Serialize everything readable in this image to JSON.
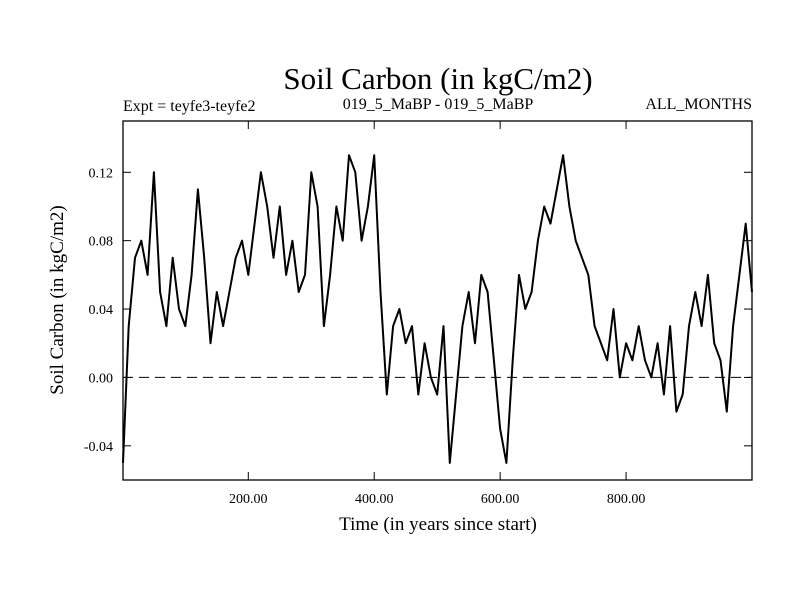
{
  "chart_data": {
    "type": "line",
    "title": "Soil Carbon (in kgC/m2)",
    "subtitle_left": "Expt = teyfe3-teyfe2",
    "subtitle_center": "019_5_MaBP - 019_5_MaBP",
    "subtitle_right": "ALL_MONTHS",
    "xlabel": "Time (in years since start)",
    "ylabel": "Soil Carbon (in kgC/m2)",
    "xlim": [
      1,
      1000
    ],
    "ylim": [
      -0.06,
      0.15
    ],
    "xticks": [
      200,
      400,
      600,
      800
    ],
    "xtick_labels": [
      "200.00",
      "400.00",
      "600.00",
      "800.00"
    ],
    "yticks": [
      -0.04,
      0.0,
      0.04,
      0.08,
      0.12
    ],
    "ytick_labels": [
      "-0.04",
      "0.00",
      "0.04",
      "0.08",
      "0.12"
    ],
    "zero_line": 0.0,
    "grid": false,
    "series": [
      {
        "name": "Soil Carbon",
        "x": [
          1,
          10,
          20,
          30,
          40,
          50,
          60,
          70,
          80,
          90,
          100,
          110,
          120,
          130,
          140,
          150,
          160,
          170,
          180,
          190,
          200,
          210,
          220,
          230,
          240,
          250,
          260,
          270,
          280,
          290,
          300,
          310,
          320,
          330,
          340,
          350,
          360,
          370,
          380,
          390,
          400,
          410,
          420,
          430,
          440,
          450,
          460,
          470,
          480,
          490,
          500,
          510,
          520,
          530,
          540,
          550,
          560,
          570,
          580,
          590,
          600,
          610,
          620,
          630,
          640,
          650,
          660,
          670,
          680,
          690,
          700,
          710,
          720,
          730,
          740,
          750,
          760,
          770,
          780,
          790,
          800,
          810,
          820,
          830,
          840,
          850,
          860,
          870,
          880,
          890,
          900,
          910,
          920,
          930,
          940,
          950,
          960,
          970,
          980,
          990,
          1000
        ],
        "values": [
          -0.05,
          0.03,
          0.07,
          0.08,
          0.06,
          0.12,
          0.05,
          0.03,
          0.07,
          0.04,
          0.03,
          0.06,
          0.11,
          0.07,
          0.02,
          0.05,
          0.03,
          0.05,
          0.07,
          0.08,
          0.06,
          0.09,
          0.12,
          0.1,
          0.07,
          0.1,
          0.06,
          0.08,
          0.05,
          0.06,
          0.12,
          0.1,
          0.03,
          0.06,
          0.1,
          0.08,
          0.13,
          0.12,
          0.08,
          0.1,
          0.13,
          0.05,
          -0.01,
          0.03,
          0.04,
          0.02,
          0.03,
          -0.01,
          0.02,
          0.0,
          -0.01,
          0.03,
          -0.05,
          -0.01,
          0.03,
          0.05,
          0.02,
          0.06,
          0.05,
          0.01,
          -0.03,
          -0.05,
          0.01,
          0.06,
          0.04,
          0.05,
          0.08,
          0.1,
          0.09,
          0.11,
          0.13,
          0.1,
          0.08,
          0.07,
          0.06,
          0.03,
          0.02,
          0.01,
          0.04,
          0.0,
          0.02,
          0.01,
          0.03,
          0.01,
          0.0,
          0.02,
          -0.01,
          0.03,
          -0.02,
          -0.01,
          0.03,
          0.05,
          0.03,
          0.06,
          0.02,
          0.01,
          -0.02,
          0.03,
          0.06,
          0.09,
          0.05
        ]
      }
    ]
  }
}
